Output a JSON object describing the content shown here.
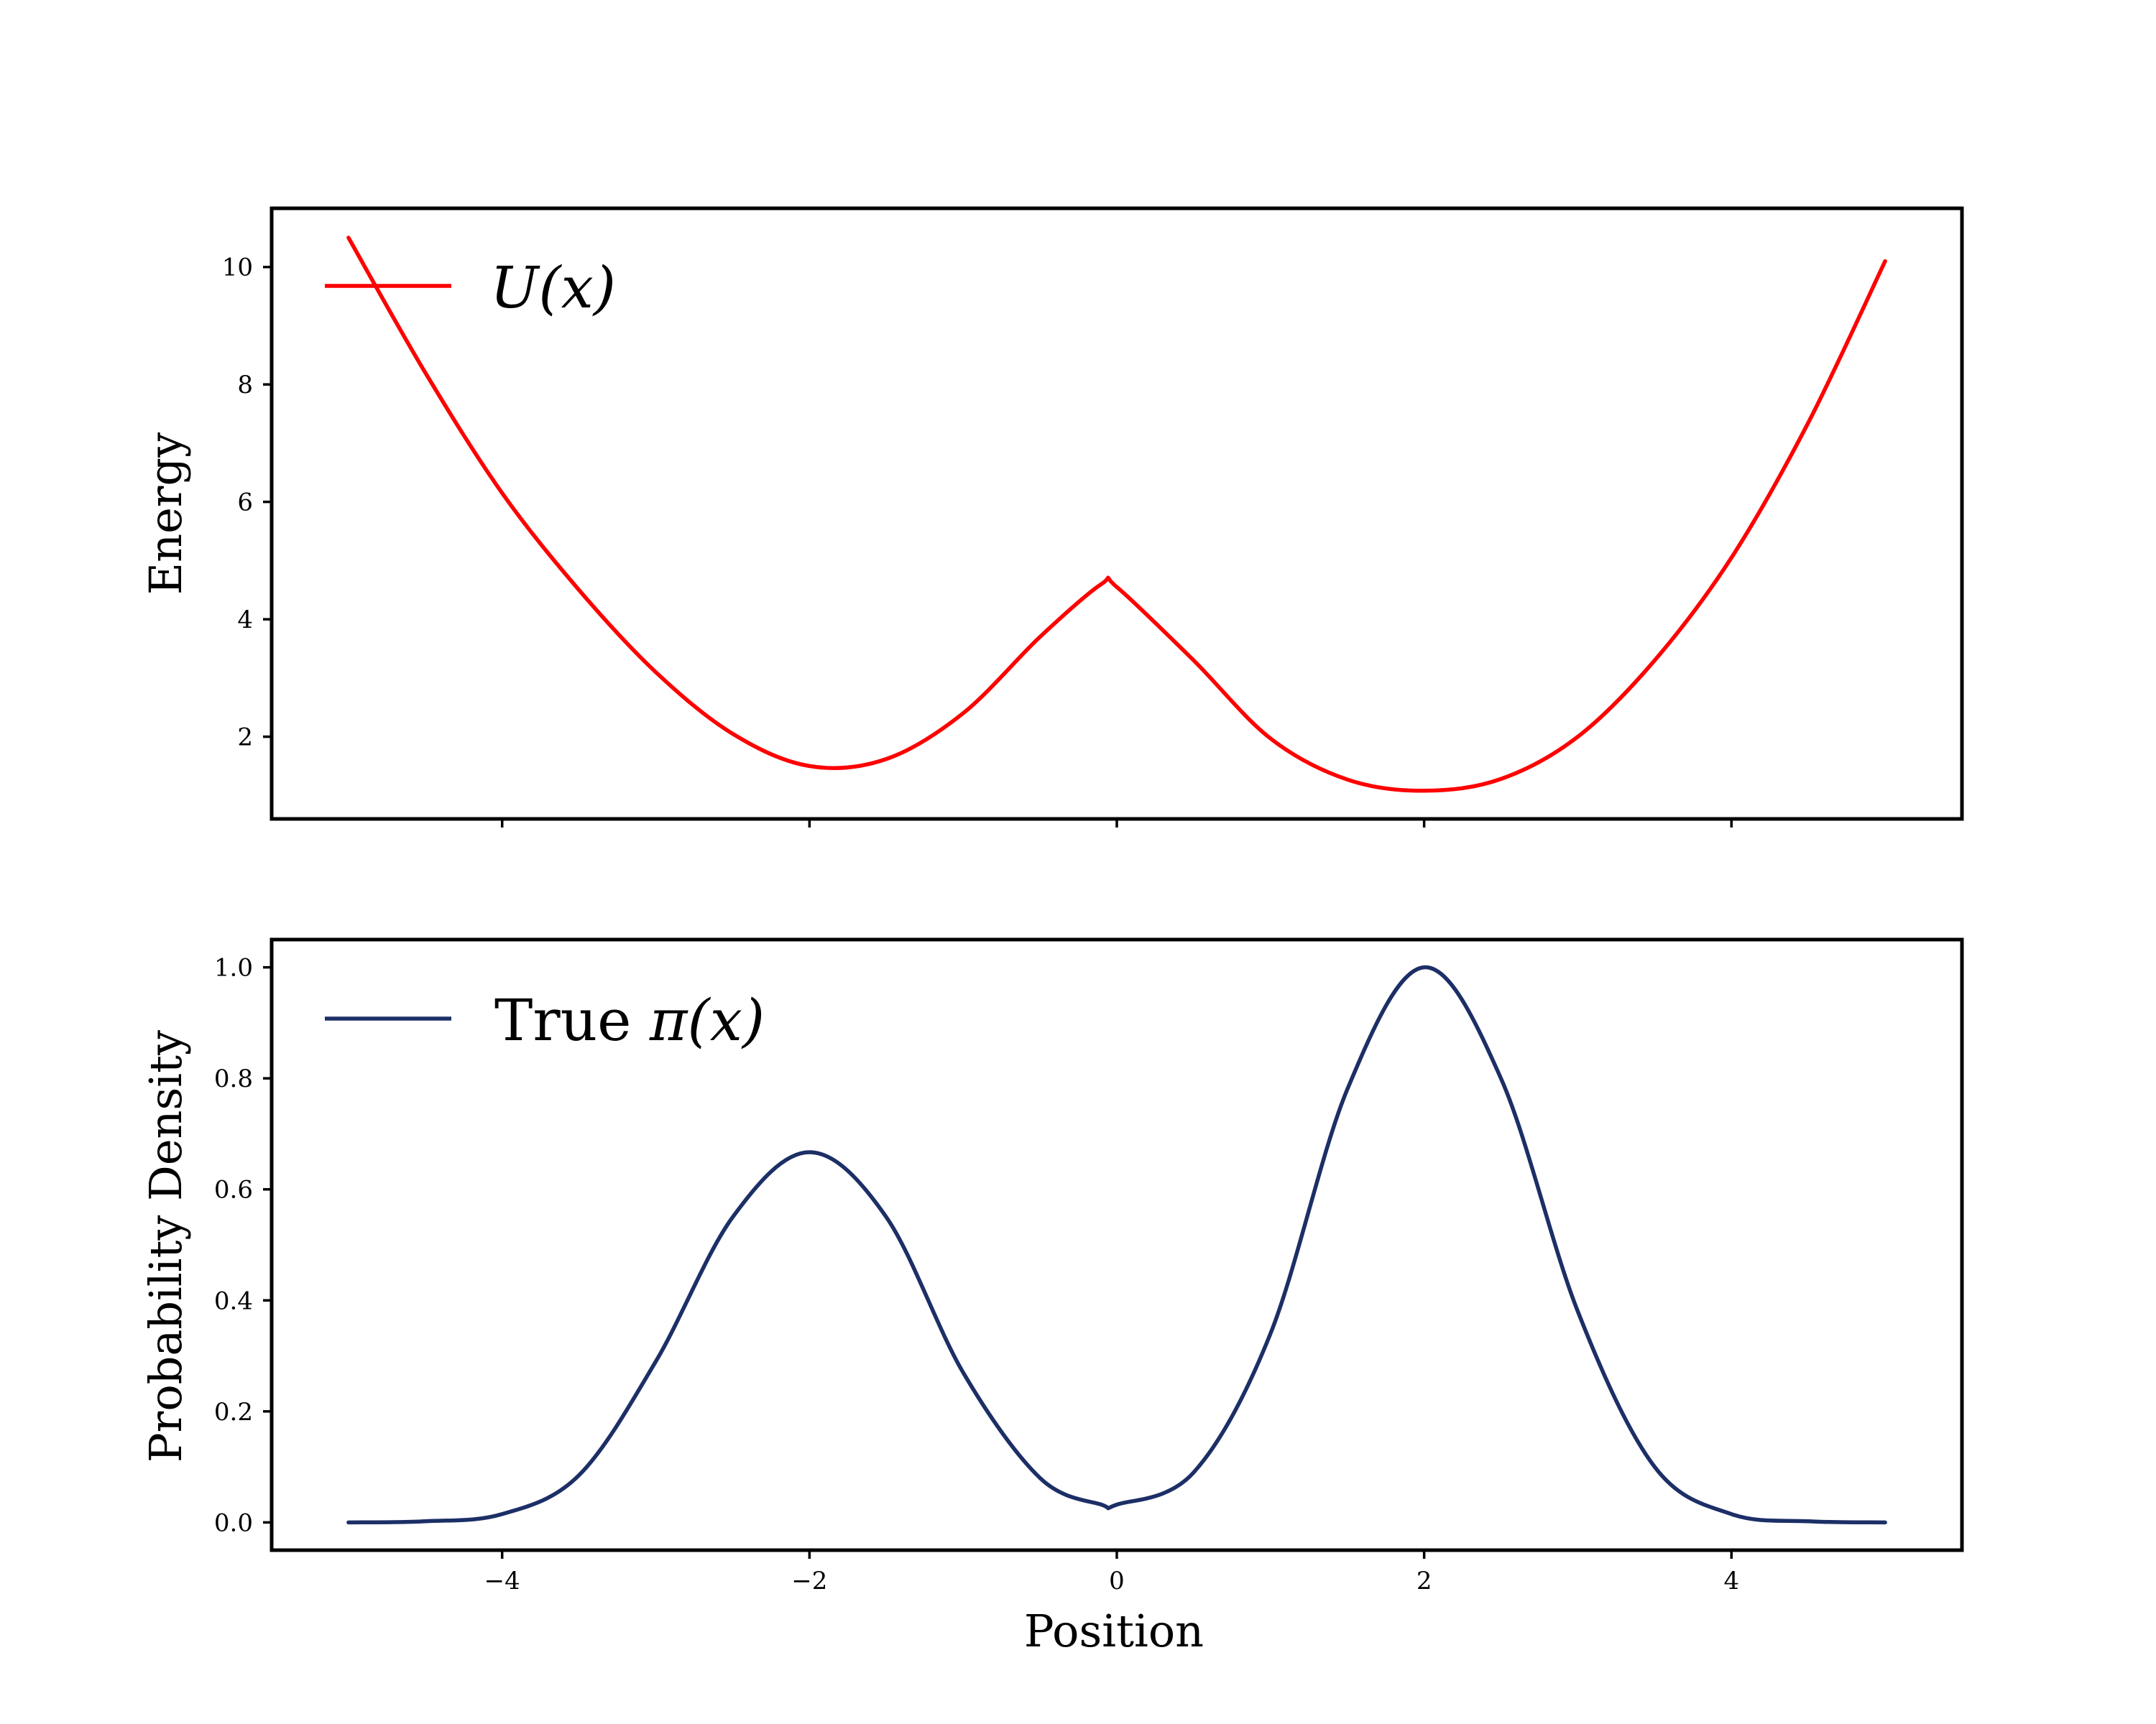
{
  "chart_data": [
    {
      "type": "line",
      "ylabel": "Energy",
      "xlim": [
        -5.5,
        5.5
      ],
      "ylim": [
        0.6,
        11.0
      ],
      "xticks": [
        -4,
        -2,
        0,
        2,
        4
      ],
      "show_xtick_labels": false,
      "yticks": [
        2,
        4,
        6,
        8,
        10
      ],
      "ytick_labels": [
        "2",
        "4",
        "6",
        "8",
        "10"
      ],
      "grid": false,
      "legend_position": "top-left",
      "series": [
        {
          "name": "U(x)",
          "legend_prefix": "",
          "legend_math": "U(x)",
          "color": "#ff0000",
          "x": [
            -5,
            -4.5,
            -4,
            -3.5,
            -3,
            -2.5,
            -2,
            -1.5,
            -1,
            -0.5,
            -0.1,
            0,
            0.5,
            1,
            1.5,
            2,
            2.5,
            3,
            3.5,
            4,
            4.5,
            5
          ],
          "y": [
            10.5,
            8.2,
            6.15,
            4.5,
            3.1,
            2.05,
            1.5,
            1.62,
            2.4,
            3.7,
            4.6,
            4.55,
            3.3,
            1.97,
            1.27,
            1.08,
            1.28,
            2.0,
            3.3,
            5.05,
            7.35,
            10.1
          ]
        }
      ]
    },
    {
      "type": "line",
      "xlabel": "Position",
      "ylabel": "Probability Density",
      "xlim": [
        -5.5,
        5.5
      ],
      "ylim": [
        -0.05,
        1.05
      ],
      "xticks": [
        -4,
        -2,
        0,
        2,
        4
      ],
      "xtick_labels": [
        "−4",
        "−2",
        "0",
        "2",
        "4"
      ],
      "yticks": [
        0.0,
        0.2,
        0.4,
        0.6,
        0.8,
        1.0
      ],
      "ytick_labels": [
        "0.0",
        "0.2",
        "0.4",
        "0.6",
        "0.8",
        "1.0"
      ],
      "grid": false,
      "legend_position": "top-left",
      "series": [
        {
          "name": "True π(x)",
          "legend_prefix": "True ",
          "legend_math": "π(x)",
          "color": "#1c2f66",
          "x": [
            -5,
            -4.5,
            -4,
            -3.5,
            -3,
            -2.5,
            -2,
            -1.5,
            -1,
            -0.5,
            -0.1,
            0,
            0.5,
            1,
            1.5,
            2,
            2.5,
            3,
            3.5,
            4,
            4.5,
            5
          ],
          "y": [
            0.0,
            0.002,
            0.015,
            0.085,
            0.29,
            0.55,
            0.667,
            0.55,
            0.27,
            0.08,
            0.032,
            0.032,
            0.09,
            0.34,
            0.78,
            1.0,
            0.8,
            0.38,
            0.1,
            0.015,
            0.002,
            0.0
          ]
        }
      ]
    }
  ]
}
